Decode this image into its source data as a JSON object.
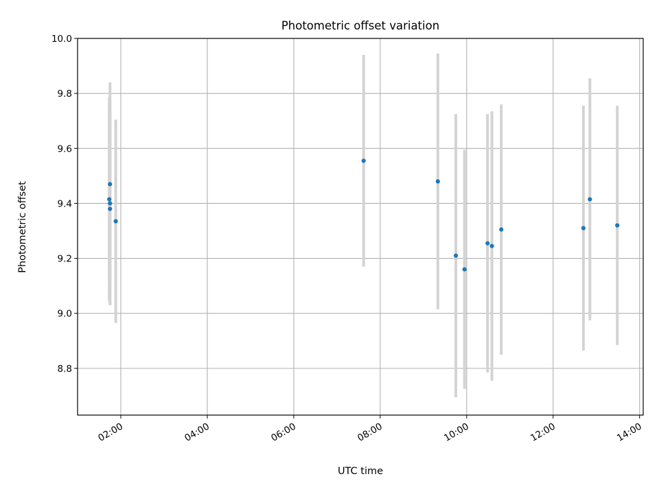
{
  "chart_data": {
    "type": "scatter",
    "title": "Photometric offset variation",
    "xlabel": "UTC time",
    "ylabel": "Photometric offset",
    "x_ticks": [
      "02:00",
      "04:00",
      "06:00",
      "08:00",
      "10:00",
      "12:00",
      "14:00"
    ],
    "y_ticks": [
      "8.8",
      "9.0",
      "9.2",
      "9.4",
      "9.6",
      "9.8",
      "10.0"
    ],
    "xlim": [
      "01:00",
      "14:05"
    ],
    "ylim": [
      8.63,
      10.0
    ],
    "grid": true,
    "legend": "none",
    "colors": {
      "points": "#1f77b4",
      "errorbars": "#d3d3d3",
      "grid": "#b0b0b0"
    },
    "points": [
      {
        "x": "01:44",
        "y": 9.415,
        "err": 0.37
      },
      {
        "x": "01:45",
        "y": 9.47,
        "err": 0.37
      },
      {
        "x": "01:45",
        "y": 9.4,
        "err": 0.37
      },
      {
        "x": "01:45",
        "y": 9.38,
        "err": 0.35
      },
      {
        "x": "01:53",
        "y": 9.335,
        "err": 0.37
      },
      {
        "x": "07:37",
        "y": 9.555,
        "err": 0.385
      },
      {
        "x": "09:20",
        "y": 9.48,
        "err": 0.465
      },
      {
        "x": "09:45",
        "y": 9.21,
        "err": 0.515
      },
      {
        "x": "09:57",
        "y": 9.16,
        "err": 0.435
      },
      {
        "x": "10:29",
        "y": 9.255,
        "err": 0.47
      },
      {
        "x": "10:35",
        "y": 9.245,
        "err": 0.49
      },
      {
        "x": "10:48",
        "y": 9.305,
        "err": 0.455
      },
      {
        "x": "12:42",
        "y": 9.31,
        "err": 0.445
      },
      {
        "x": "12:51",
        "y": 9.415,
        "err": 0.44
      },
      {
        "x": "13:29",
        "y": 9.32,
        "err": 0.435
      }
    ]
  }
}
